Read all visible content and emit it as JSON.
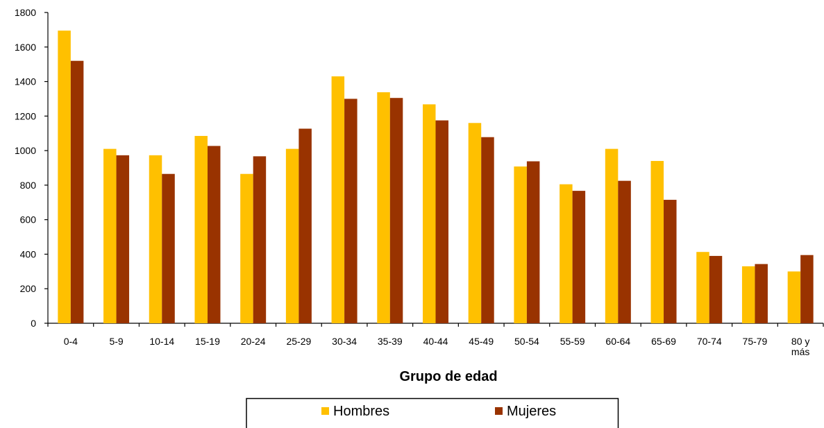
{
  "chart_data": {
    "type": "bar",
    "categories": [
      "0-4",
      "5-9",
      "10-14",
      "15-19",
      "20-24",
      "25-29",
      "30-34",
      "35-39",
      "40-44",
      "45-49",
      "50-54",
      "55-59",
      "60-64",
      "65-69",
      "70-74",
      "75-79",
      "80 y más"
    ],
    "category_lines": [
      [
        "0-4"
      ],
      [
        "5-9"
      ],
      [
        "10-14"
      ],
      [
        "15-19"
      ],
      [
        "20-24"
      ],
      [
        "25-29"
      ],
      [
        "30-34"
      ],
      [
        "35-39"
      ],
      [
        "40-44"
      ],
      [
        "45-49"
      ],
      [
        "50-54"
      ],
      [
        "55-59"
      ],
      [
        "60-64"
      ],
      [
        "65-69"
      ],
      [
        "70-74"
      ],
      [
        "75-79"
      ],
      [
        "80 y",
        "más"
      ]
    ],
    "series": [
      {
        "name": "Hombres",
        "color": "#FFC000",
        "values": [
          1695,
          1010,
          973,
          1085,
          865,
          1010,
          1430,
          1338,
          1268,
          1160,
          908,
          805,
          1010,
          940,
          413,
          330,
          300
        ]
      },
      {
        "name": "Mujeres",
        "color": "#993300",
        "values": [
          1520,
          973,
          865,
          1027,
          967,
          1127,
          1300,
          1305,
          1175,
          1078,
          938,
          767,
          825,
          715,
          390,
          343,
          395
        ]
      }
    ],
    "xlabel": "Grupo de edad",
    "ylabel": "",
    "ylim": [
      0,
      1800
    ],
    "yticks": [
      "0",
      "200",
      "400",
      "600",
      "800",
      "1000",
      "1200",
      "1400",
      "1600",
      "1800"
    ],
    "grid": false,
    "legend_position": "bottom"
  }
}
